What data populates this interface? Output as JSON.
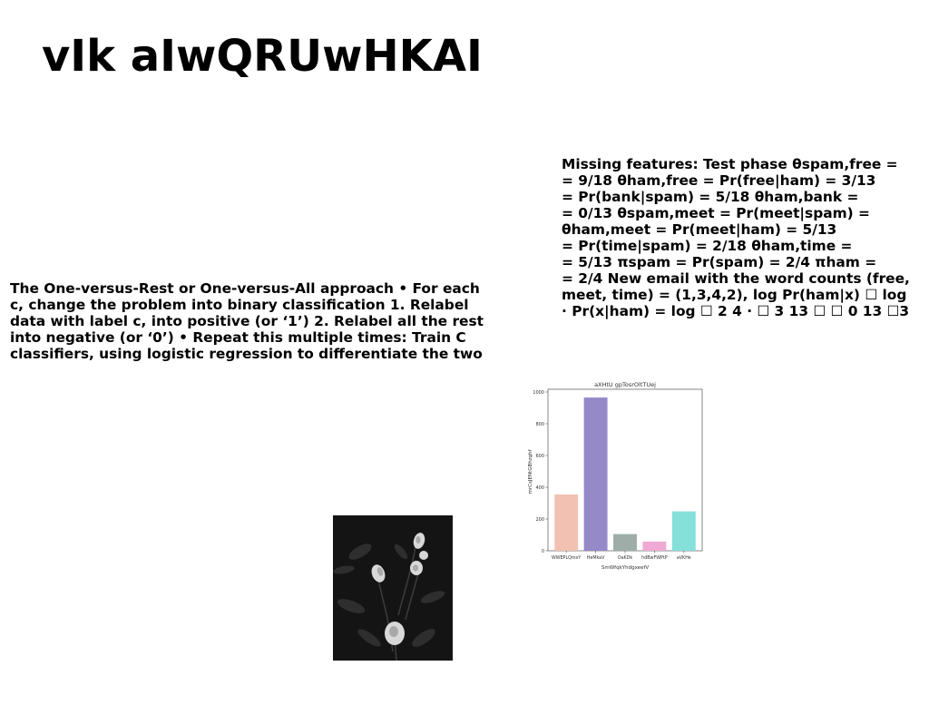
{
  "slide": {
    "title": "vIk aIwQRUwHKAI"
  },
  "left_text": {
    "lines": [
      "The One-versus-Rest or One-versus-All approach • For each",
      "c, change the problem into binary classification 1. Relabel",
      "data with label c, into positive (or ‘1’) 2. Relabel all the rest",
      "into negative (or ‘0’) • Repeat this multiple times: Train C",
      "classifiers, using logistic regression to differentiate the two"
    ]
  },
  "right_text": {
    "lines": [
      "Missing features: Test phase θspam,free =",
      "= 9/18 θham,free = Pr(free|ham) = 3/13",
      "= Pr(bank|spam) = 5/18 θham,bank =",
      "= 0/13 θspam,meet = Pr(meet|spam) =",
      "θham,meet = Pr(meet|ham) = 5/13",
      "= Pr(time|spam) = 2/18 θham,time =",
      "= 5/13 πspam = Pr(spam) = 2/4 πham =",
      "= 2/4 New email with the word counts (free,",
      "meet, time) = (1,3,4,2), log Pr(ham|x) ☐ log",
      "· Pr(x|ham) = log ☐ 2 4 · ☐ 3 13 ☐ ☐ 0 13 ☐3"
    ]
  },
  "chart_data": {
    "type": "bar",
    "title": "aXHtU gpTosrOltTUej",
    "xlabel": "SmWfqkYhdgxeefV",
    "ylabel": "mrCsJENtGBhzghf",
    "categories": [
      "WWEPLQmxY",
      "HeMkaV",
      "OaKDk",
      "hdBwFWPtP",
      "aVKHe"
    ],
    "values": [
      355,
      965,
      105,
      58,
      248
    ],
    "colors": [
      "#f2c1b1",
      "#9589c8",
      "#9fada9",
      "#eeaad2",
      "#84e0d8"
    ],
    "yticks": [
      0,
      200,
      400,
      600,
      800,
      1000
    ],
    "ylim": [
      0,
      1000
    ],
    "grid": false
  },
  "photo": {
    "icon": "roses-photo"
  }
}
